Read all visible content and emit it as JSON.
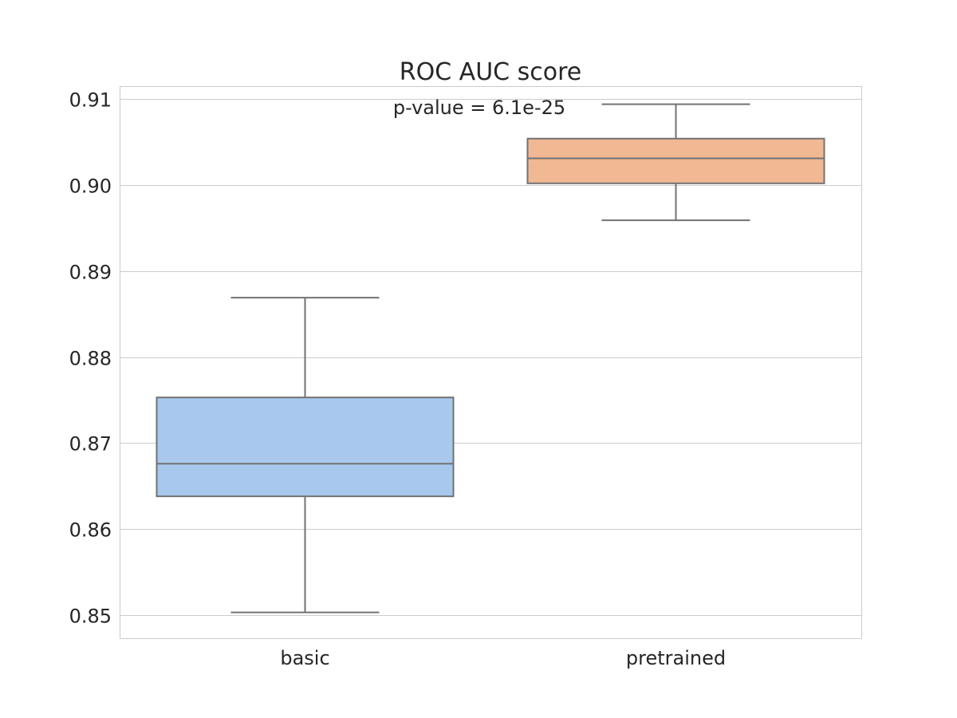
{
  "chart_data": {
    "type": "box",
    "title": "ROC AUC score",
    "annotation": "p-value = 6.1e-25",
    "xlabel": "",
    "ylabel": "",
    "categories": [
      "basic",
      "pretrained"
    ],
    "ylim": [
      0.8473,
      0.9115
    ],
    "yticks": [
      0.85,
      0.86,
      0.87,
      0.88,
      0.89,
      0.9,
      0.91
    ],
    "ytick_labels": [
      "0.85",
      "0.86",
      "0.87",
      "0.88",
      "0.89",
      "0.90",
      "0.91"
    ],
    "grid": true,
    "series": [
      {
        "category": "basic",
        "whisker_low": 0.8503,
        "q1": 0.8638,
        "median": 0.8676,
        "q3": 0.8753,
        "whisker_high": 0.8869,
        "color": "#a9c8ee"
      },
      {
        "category": "pretrained",
        "whisker_low": 0.8959,
        "q1": 0.9002,
        "median": 0.9031,
        "q3": 0.9054,
        "whisker_high": 0.9094,
        "color": "#f1b894"
      }
    ],
    "line_color": "#727272",
    "grid_color": "#cccccc"
  }
}
